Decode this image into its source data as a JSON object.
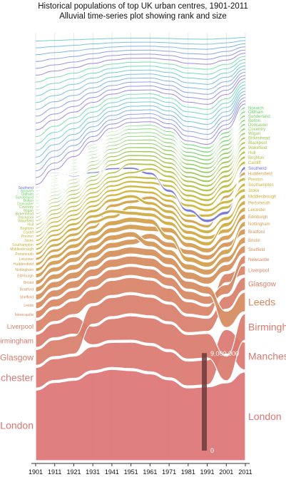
{
  "chart_data": {
    "type": "area",
    "title": "Historical populations of top UK urban centres, 1901-2011",
    "subtitle": "Alluvial time-series plot showing rank and size",
    "x": [
      1901,
      1911,
      1921,
      1931,
      1941,
      1951,
      1961,
      1971,
      1981,
      1991,
      2001,
      2011
    ],
    "x_tick_labels": [
      "1901",
      "1911",
      "1921",
      "1931",
      "1941",
      "1951",
      "1961",
      "1971",
      "1981",
      "1991",
      "2001",
      "2011"
    ],
    "scale_bar": {
      "top_label": "9,000,000",
      "bottom_label": "0",
      "max": 9000000
    },
    "grid": true,
    "series": [
      {
        "name": "London",
        "color": "#dc7474",
        "values": [
          6500000,
          7200000,
          7400000,
          8100000,
          8400000,
          8300000,
          8000000,
          7450000,
          6700000,
          6800000,
          7170000,
          8170000
        ]
      },
      {
        "name": "Manchester",
        "color": "#db7870",
        "values": [
          1900000,
          2000000,
          2040000,
          2200000,
          2300000,
          2420000,
          2430000,
          2400000,
          2280000,
          2280000,
          2240000,
          2550000
        ]
      },
      {
        "name": "Birmingham",
        "color": "#da7a6e",
        "values": [
          1200000,
          1300000,
          1600000,
          1700000,
          2000000,
          2240000,
          2350000,
          2370000,
          2250000,
          2250000,
          2280000,
          2440000
        ]
      },
      {
        "name": "Glasgow",
        "color": "#d97e6a",
        "values": [
          1450000,
          1550000,
          1650000,
          1700000,
          1750000,
          1760000,
          1700000,
          1620000,
          1500000,
          1200000,
          1170000,
          1200000
        ]
      },
      {
        "name": "Liverpool",
        "color": "#d88266",
        "values": [
          1100000,
          1150000,
          1250000,
          1300000,
          1380000,
          1380000,
          1380000,
          1270000,
          1130000,
          900000,
          820000,
          860000
        ]
      },
      {
        "name": "Newcastle",
        "color": "#d78662",
        "values": [
          680000,
          720000,
          780000,
          800000,
          820000,
          830000,
          850000,
          810000,
          780000,
          760000,
          880000,
          770000
        ]
      },
      {
        "name": "Leeds",
        "color": "#d68a5e",
        "values": [
          600000,
          640000,
          680000,
          700000,
          740000,
          760000,
          800000,
          780000,
          720000,
          710000,
          1500000,
          1780000
        ]
      },
      {
        "name": "Sheffield",
        "color": "#d58e5a",
        "values": [
          550000,
          580000,
          600000,
          610000,
          630000,
          640000,
          650000,
          660000,
          660000,
          650000,
          640000,
          690000
        ]
      },
      {
        "name": "Bradford",
        "color": "#d49256",
        "values": [
          480000,
          500000,
          520000,
          530000,
          530000,
          520000,
          500000,
          490000,
          470000,
          460000,
          450000,
          540000
        ]
      },
      {
        "name": "Bristol",
        "color": "#d39652",
        "values": [
          420000,
          440000,
          460000,
          470000,
          490000,
          500000,
          520000,
          530000,
          530000,
          520000,
          550000,
          620000
        ]
      },
      {
        "name": "Edinburgh",
        "color": "#d29a4e",
        "values": [
          400000,
          420000,
          440000,
          460000,
          470000,
          480000,
          480000,
          470000,
          450000,
          440000,
          450000,
          480000
        ]
      },
      {
        "name": "Nottingham",
        "color": "#d19e4a",
        "values": [
          330000,
          360000,
          400000,
          430000,
          450000,
          460000,
          470000,
          480000,
          480000,
          470000,
          470000,
          490000
        ]
      },
      {
        "name": "Huddersfield",
        "color": "#d0a246",
        "values": [
          300000,
          300000,
          310000,
          310000,
          310000,
          310000,
          310000,
          310000,
          300000,
          300000,
          290000,
          310000
        ]
      },
      {
        "name": "Leicester",
        "color": "#cfa642",
        "values": [
          280000,
          290000,
          300000,
          310000,
          320000,
          330000,
          340000,
          350000,
          350000,
          360000,
          390000,
          440000
        ]
      },
      {
        "name": "Portsmouth",
        "color": "#ceaa3e",
        "values": [
          250000,
          270000,
          290000,
          300000,
          320000,
          340000,
          350000,
          360000,
          370000,
          380000,
          390000,
          400000
        ]
      },
      {
        "name": "Middlesbrough",
        "color": "#cdae3a",
        "values": [
          220000,
          240000,
          260000,
          280000,
          300000,
          310000,
          320000,
          330000,
          330000,
          330000,
          340000,
          380000
        ]
      },
      {
        "name": "Southampton",
        "color": "#ccb236",
        "values": [
          200000,
          210000,
          220000,
          230000,
          240000,
          250000,
          260000,
          270000,
          280000,
          290000,
          300000,
          320000
        ]
      },
      {
        "name": "Stoke",
        "color": "#c9b536",
        "values": [
          190000,
          200000,
          210000,
          220000,
          230000,
          240000,
          250000,
          260000,
          270000,
          280000,
          300000,
          330000
        ]
      },
      {
        "name": "Preston",
        "color": "#c5b838",
        "values": [
          180000,
          190000,
          200000,
          210000,
          220000,
          230000,
          240000,
          250000,
          260000,
          270000,
          290000,
          320000
        ]
      },
      {
        "name": "Cardiff",
        "color": "#c0ba3a",
        "values": [
          170000,
          180000,
          190000,
          200000,
          210000,
          220000,
          230000,
          240000,
          250000,
          260000,
          280000,
          300000
        ]
      },
      {
        "name": "Southend",
        "color": "#7070d8",
        "values": [
          40000,
          70000,
          110000,
          150000,
          180000,
          200000,
          230000,
          260000,
          280000,
          300000,
          310000,
          310000
        ]
      },
      {
        "name": "Brighton",
        "color": "#b8be3e",
        "values": [
          160000,
          170000,
          180000,
          190000,
          200000,
          210000,
          220000,
          230000,
          240000,
          250000,
          260000,
          270000
        ]
      },
      {
        "name": "Hull",
        "color": "#b0c042",
        "values": [
          150000,
          160000,
          170000,
          180000,
          190000,
          200000,
          210000,
          220000,
          230000,
          240000,
          250000,
          260000
        ]
      },
      {
        "name": "Wakefield",
        "color": "#a8c246",
        "values": [
          140000,
          150000,
          160000,
          170000,
          180000,
          190000,
          200000,
          210000,
          220000,
          230000,
          240000,
          250000
        ]
      },
      {
        "name": "Blackpool",
        "color": "#a0c44a",
        "values": [
          130000,
          140000,
          150000,
          160000,
          170000,
          180000,
          190000,
          200000,
          210000,
          220000,
          230000,
          240000
        ]
      },
      {
        "name": "Birkenhead",
        "color": "#98c64e",
        "values": [
          120000,
          130000,
          140000,
          150000,
          160000,
          170000,
          180000,
          190000,
          200000,
          210000,
          220000,
          230000
        ]
      },
      {
        "name": "Wigan",
        "color": "#90c852",
        "values": [
          110000,
          120000,
          130000,
          140000,
          150000,
          160000,
          170000,
          180000,
          190000,
          200000,
          210000,
          220000
        ]
      },
      {
        "name": "Coventry",
        "color": "#88ca56",
        "values": [
          100000,
          110000,
          120000,
          130000,
          140000,
          150000,
          160000,
          170000,
          180000,
          190000,
          200000,
          210000
        ]
      },
      {
        "name": "Doncaster",
        "color": "#80cc5a",
        "values": [
          90000,
          100000,
          110000,
          120000,
          130000,
          140000,
          150000,
          160000,
          170000,
          180000,
          190000,
          200000
        ]
      },
      {
        "name": "Bolton",
        "color": "#78ce5e",
        "values": [
          85000,
          95000,
          105000,
          115000,
          125000,
          135000,
          145000,
          155000,
          165000,
          175000,
          185000,
          195000
        ]
      },
      {
        "name": "Sunderland",
        "color": "#70d062",
        "values": [
          80000,
          90000,
          100000,
          110000,
          120000,
          130000,
          140000,
          150000,
          160000,
          170000,
          180000,
          190000
        ]
      },
      {
        "name": "Oldham",
        "color": "#68d266",
        "values": [
          75000,
          85000,
          95000,
          105000,
          115000,
          125000,
          135000,
          145000,
          155000,
          165000,
          175000,
          185000
        ]
      },
      {
        "name": "Norwich",
        "color": "#60d46a",
        "values": [
          70000,
          80000,
          90000,
          100000,
          110000,
          120000,
          130000,
          140000,
          150000,
          160000,
          170000,
          180000
        ]
      }
    ]
  }
}
